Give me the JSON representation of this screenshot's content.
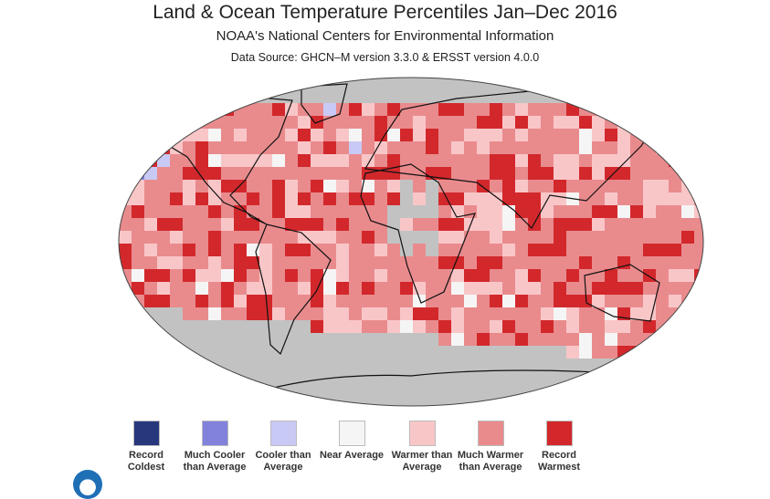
{
  "title": "Land & Ocean Temperature Percentiles Jan–Dec 2016",
  "subtitle": "NOAA's National Centers for Environmental Information",
  "source": "Data Source: GHCN–M version 3.3.0 & ERSST version 4.0.0",
  "legend": [
    {
      "label": "Record Coldest",
      "color": "#27377c"
    },
    {
      "label": "Much Cooler than Average",
      "color": "#8282dd"
    },
    {
      "label": "Cooler than Average",
      "color": "#c9c9f5"
    },
    {
      "label": "Near Average",
      "color": "#f5f5f5"
    },
    {
      "label": "Warmer than Average",
      "color": "#f9c6c8"
    },
    {
      "label": "Much Warmer than Average",
      "color": "#e98b8d"
    },
    {
      "label": "Record Warmest",
      "color": "#d2282c"
    }
  ],
  "no_data_color": "#c2c2c2",
  "logo": "NOAA"
}
